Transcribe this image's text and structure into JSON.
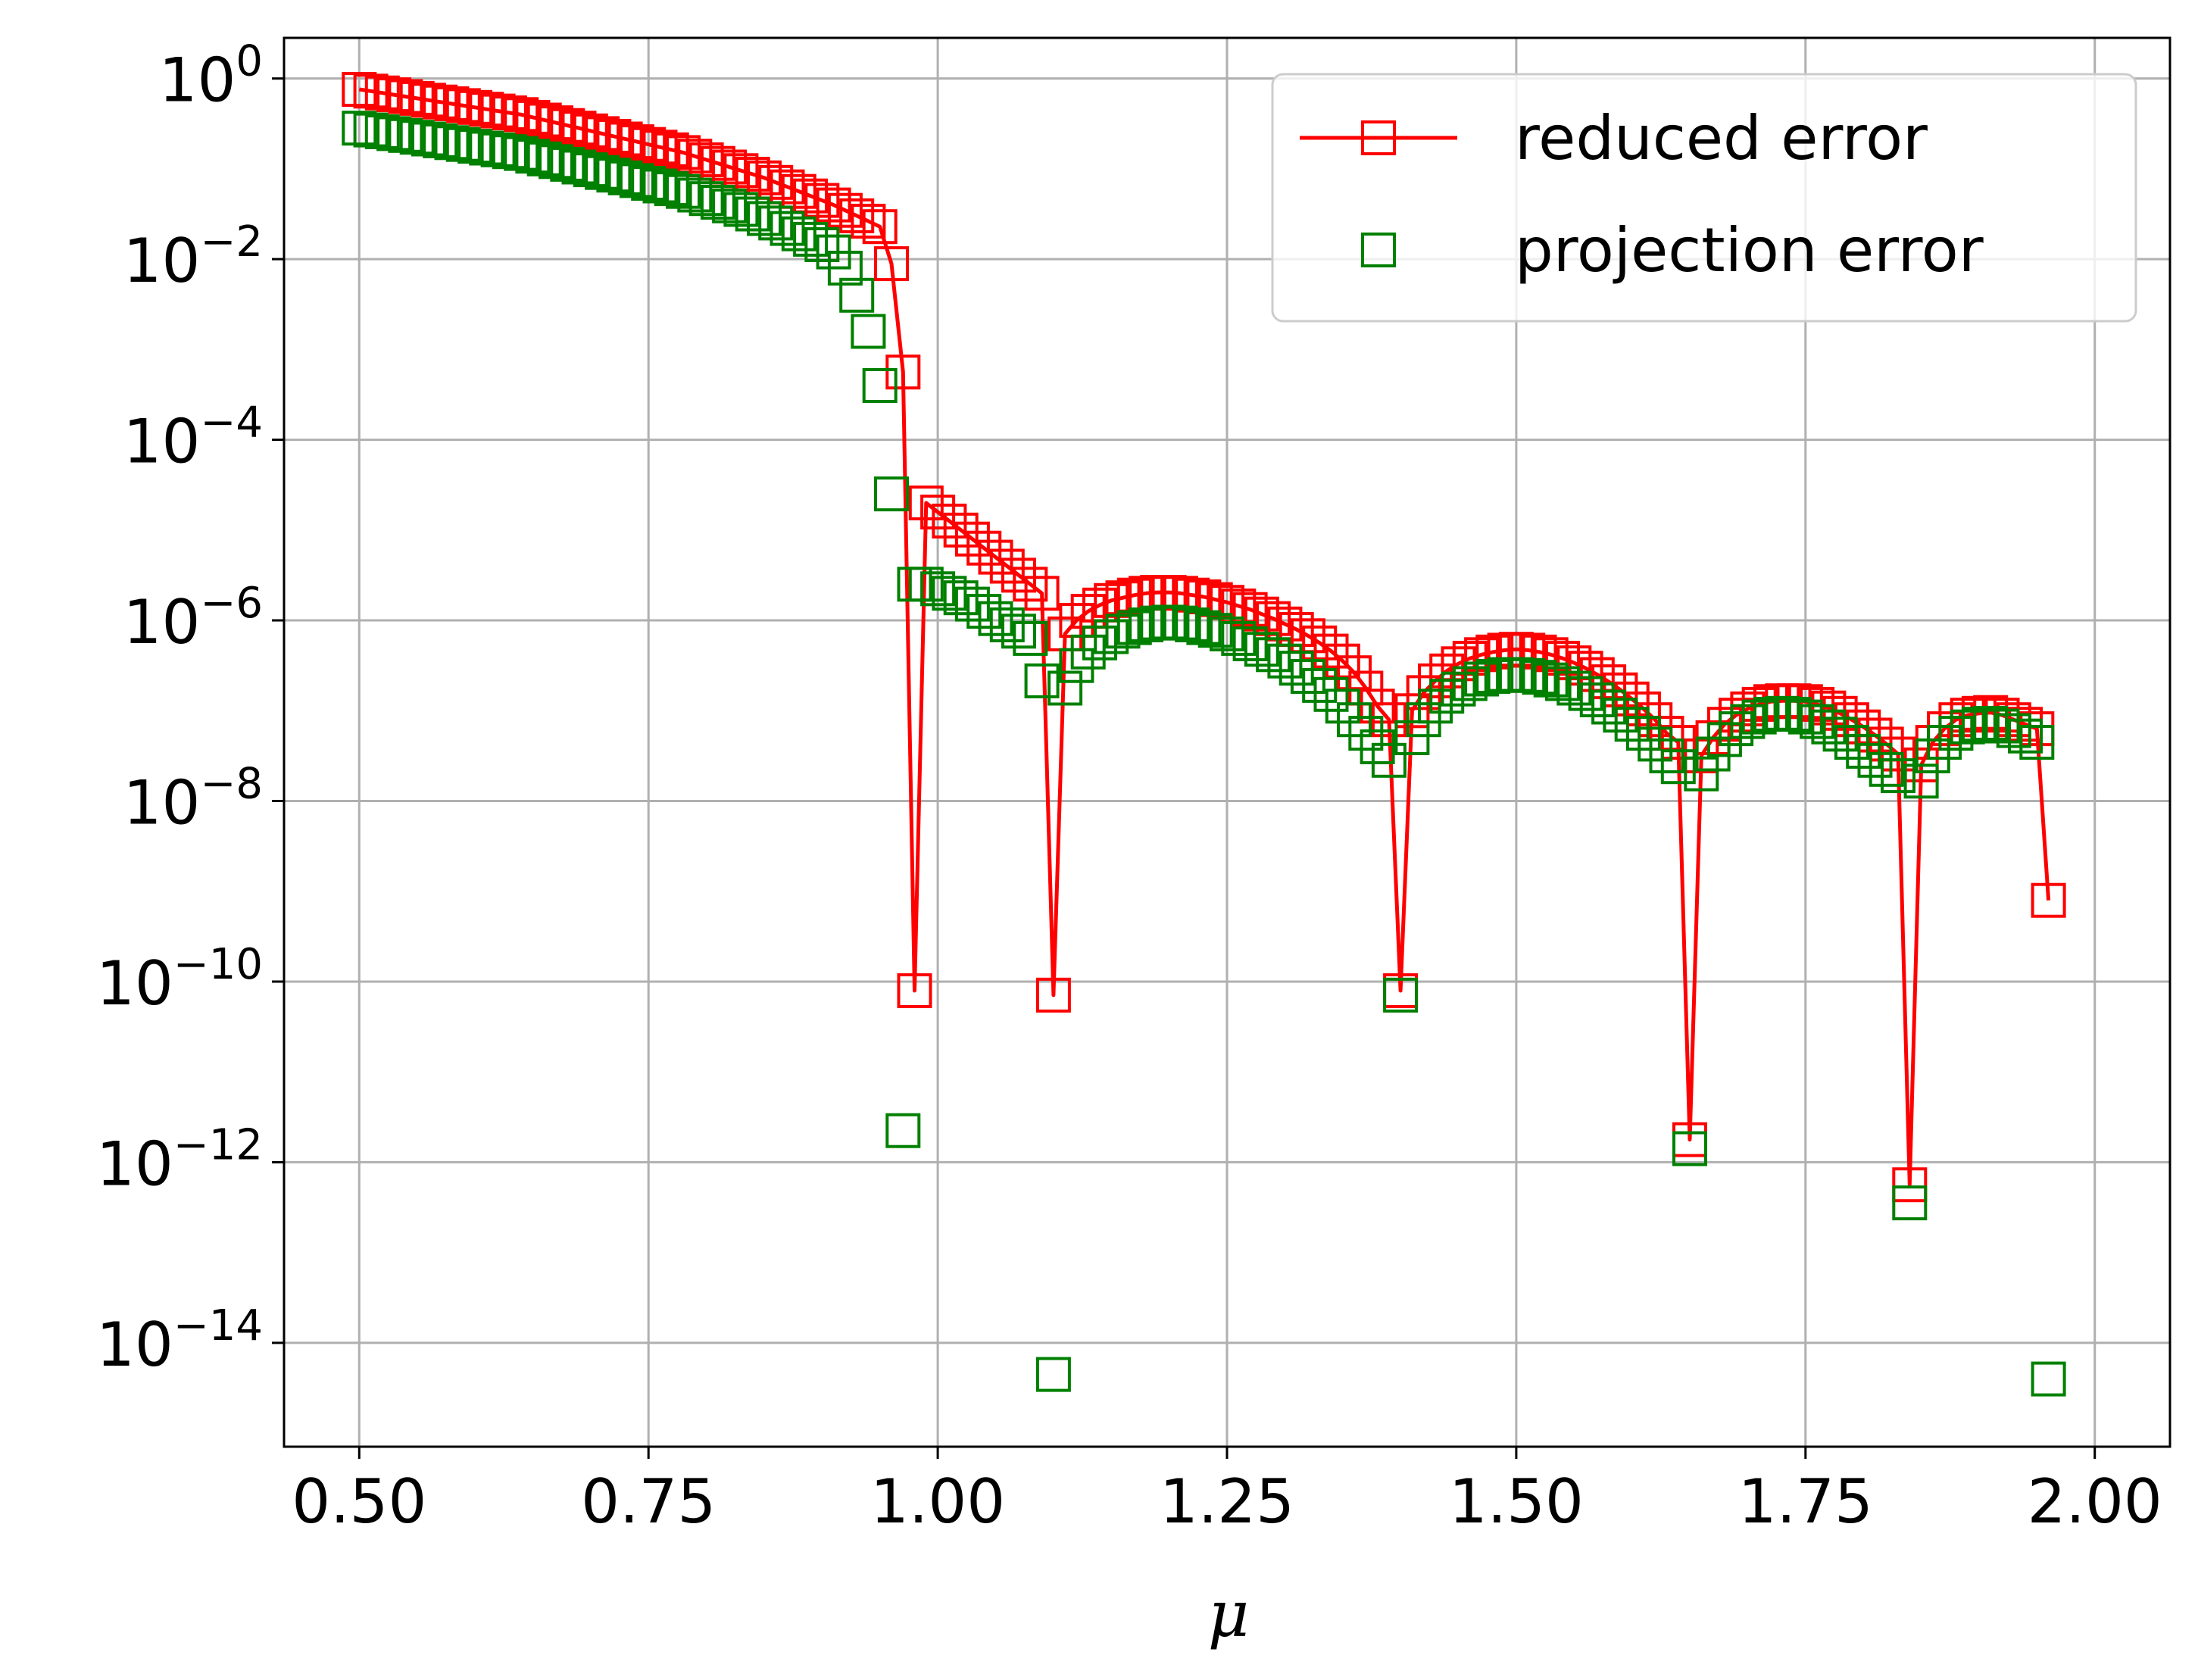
{
  "chart_data": {
    "type": "scatter",
    "title": "",
    "xlabel": "μ",
    "ylabel": "",
    "xlim": [
      0.435,
      2.065
    ],
    "ylim_log10": [
      -15.15,
      0.45
    ],
    "yscale": "log",
    "grid": true,
    "legend_position": "top-right",
    "x_ticks": [
      "0.50",
      "0.75",
      "1.00",
      "1.25",
      "1.50",
      "1.75",
      "2.00"
    ],
    "y_ticks": [
      {
        "base": "10",
        "exp": "0"
      },
      {
        "base": "10",
        "exp": "−2"
      },
      {
        "base": "10",
        "exp": "−4"
      },
      {
        "base": "10",
        "exp": "−6"
      },
      {
        "base": "10",
        "exp": "−8"
      },
      {
        "base": "10",
        "exp": "−10"
      },
      {
        "base": "10",
        "exp": "−12"
      },
      {
        "base": "10",
        "exp": "−14"
      }
    ],
    "x_start": 0.5,
    "x_step": 0.01,
    "series": [
      {
        "name": "reduced error",
        "color": "#ff0000",
        "style": "line-with-square-markers",
        "log10_values": [
          -0.12,
          -0.14,
          -0.16,
          -0.18,
          -0.2,
          -0.22,
          -0.24,
          -0.26,
          -0.28,
          -0.3,
          -0.32,
          -0.34,
          -0.36,
          -0.38,
          -0.4,
          -0.43,
          -0.46,
          -0.49,
          -0.52,
          -0.55,
          -0.58,
          -0.61,
          -0.64,
          -0.67,
          -0.7,
          -0.73,
          -0.76,
          -0.79,
          -0.82,
          -0.86,
          -0.9,
          -0.94,
          -0.98,
          -1.02,
          -1.06,
          -1.1,
          -1.15,
          -1.2,
          -1.25,
          -1.3,
          -1.35,
          -1.4,
          -1.46,
          -1.52,
          -1.58,
          -1.64,
          -2.05,
          -3.25,
          -10.1,
          -4.7,
          -4.8,
          -4.9,
          -5.0,
          -5.1,
          -5.2,
          -5.3,
          -5.4,
          -5.5,
          -5.6,
          -5.7,
          -10.15,
          -6.15,
          -6.0,
          -5.9,
          -5.83,
          -5.78,
          -5.75,
          -5.72,
          -5.7,
          -5.69,
          -5.69,
          -5.7,
          -5.72,
          -5.74,
          -5.77,
          -5.8,
          -5.84,
          -5.88,
          -5.93,
          -5.98,
          -6.04,
          -6.1,
          -6.17,
          -6.25,
          -6.34,
          -6.45,
          -6.58,
          -6.75,
          -6.95,
          -7.1,
          -10.1,
          -7.0,
          -6.8,
          -6.67,
          -6.56,
          -6.48,
          -6.42,
          -6.38,
          -6.35,
          -6.33,
          -6.32,
          -6.33,
          -6.35,
          -6.38,
          -6.42,
          -6.47,
          -6.53,
          -6.6,
          -6.68,
          -6.77,
          -6.87,
          -6.98,
          -7.1,
          -7.25,
          -7.35,
          -11.75,
          -7.5,
          -7.3,
          -7.15,
          -7.05,
          -6.98,
          -6.93,
          -6.9,
          -6.89,
          -6.89,
          -6.9,
          -6.93,
          -6.97,
          -7.03,
          -7.1,
          -7.18,
          -7.27,
          -7.37,
          -7.48,
          -12.25,
          -7.6,
          -7.35,
          -7.2,
          -7.1,
          -7.05,
          -7.03,
          -7.02,
          -7.05,
          -7.1,
          -7.15,
          -7.2,
          -9.1
        ]
      },
      {
        "name": "projection error",
        "color": "#008000",
        "style": "square-markers",
        "log10_values": [
          -0.55,
          -0.57,
          -0.59,
          -0.61,
          -0.63,
          -0.65,
          -0.67,
          -0.69,
          -0.71,
          -0.73,
          -0.75,
          -0.77,
          -0.79,
          -0.81,
          -0.83,
          -0.86,
          -0.89,
          -0.92,
          -0.95,
          -0.98,
          -1.01,
          -1.04,
          -1.07,
          -1.1,
          -1.13,
          -1.16,
          -1.19,
          -1.22,
          -1.25,
          -1.29,
          -1.33,
          -1.37,
          -1.41,
          -1.45,
          -1.5,
          -1.55,
          -1.6,
          -1.66,
          -1.72,
          -1.78,
          -1.84,
          -1.92,
          -2.1,
          -2.4,
          -2.8,
          -3.4,
          -4.6,
          -11.65,
          -5.6,
          -5.6,
          -5.65,
          -5.7,
          -5.75,
          -5.82,
          -5.9,
          -5.98,
          -6.05,
          -6.12,
          -6.2,
          -6.67,
          -14.35,
          -6.75,
          -6.5,
          -6.35,
          -6.25,
          -6.18,
          -6.12,
          -6.08,
          -6.05,
          -6.03,
          -6.02,
          -6.03,
          -6.05,
          -6.08,
          -6.11,
          -6.15,
          -6.2,
          -6.26,
          -6.32,
          -6.38,
          -6.45,
          -6.53,
          -6.62,
          -6.72,
          -6.82,
          -6.95,
          -7.1,
          -7.25,
          -7.4,
          -7.55,
          -10.15,
          -7.3,
          -7.1,
          -6.95,
          -6.84,
          -6.76,
          -6.7,
          -6.65,
          -6.62,
          -6.6,
          -6.6,
          -6.61,
          -6.63,
          -6.66,
          -6.7,
          -6.75,
          -6.81,
          -6.88,
          -6.96,
          -7.05,
          -7.15,
          -7.25,
          -7.37,
          -7.5,
          -7.62,
          -11.85,
          -7.7,
          -7.48,
          -7.32,
          -7.2,
          -7.12,
          -7.07,
          -7.04,
          -7.03,
          -7.04,
          -7.07,
          -7.12,
          -7.18,
          -7.26,
          -7.35,
          -7.45,
          -7.55,
          -7.65,
          -7.72,
          -12.45,
          -7.78,
          -7.5,
          -7.35,
          -7.25,
          -7.18,
          -7.15,
          -7.14,
          -7.17,
          -7.22,
          -7.28,
          -7.35,
          -14.4
        ]
      }
    ]
  }
}
